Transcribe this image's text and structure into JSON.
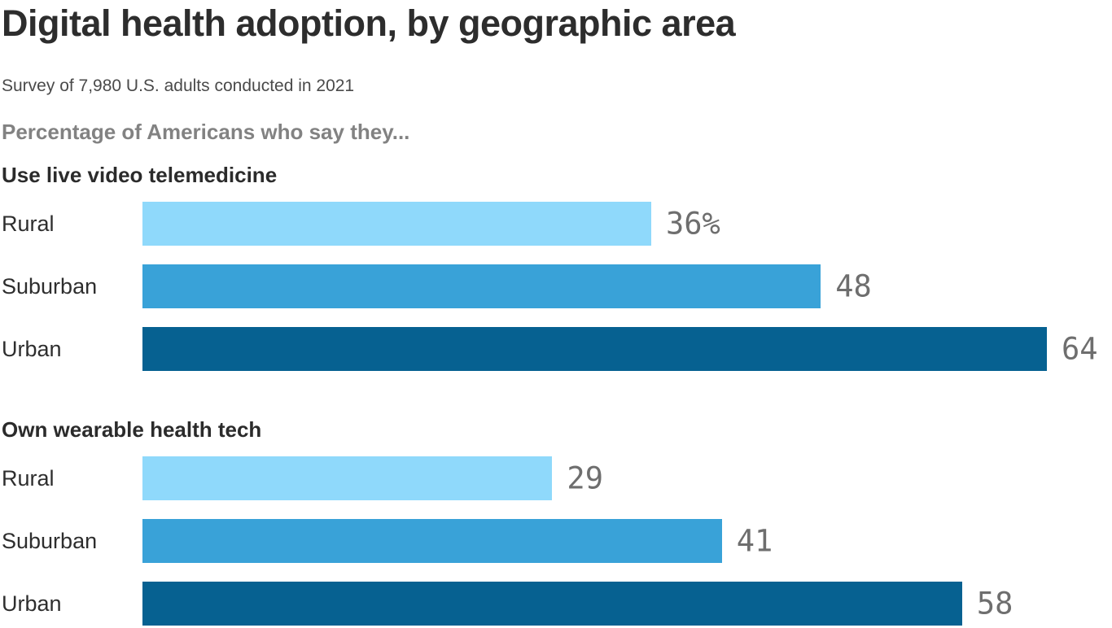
{
  "page": {
    "title": "Digital health adoption, by geographic area",
    "subtitle": "Survey of 7,980 U.S. adults conducted in 2021",
    "kicker": "Percentage of Americans who say they..."
  },
  "colors": {
    "title_text": "#2d2d2d",
    "subtitle_text": "#4a4a4a",
    "kicker_text": "#828282",
    "section_title_text": "#2b2b2b",
    "category_text": "#2e2e2e",
    "value_text": "#6e6e6e",
    "background": "#ffffff"
  },
  "chart_data": {
    "type": "bar",
    "orientation": "horizontal",
    "unit": "percent",
    "axis_max": 64,
    "grid": false,
    "legend": false,
    "categories": [
      "Rural",
      "Suburban",
      "Urban"
    ],
    "bar_colors": [
      "#8FD9FB",
      "#39A2D8",
      "#066191"
    ],
    "charts": [
      {
        "title": "Use live video telemedicine",
        "values": [
          36,
          48,
          64
        ],
        "value_labels": [
          "36%",
          "48",
          "64"
        ]
      },
      {
        "title": "Own wearable health tech",
        "values": [
          29,
          41,
          58
        ],
        "value_labels": [
          "29",
          "41",
          "58"
        ]
      }
    ]
  }
}
